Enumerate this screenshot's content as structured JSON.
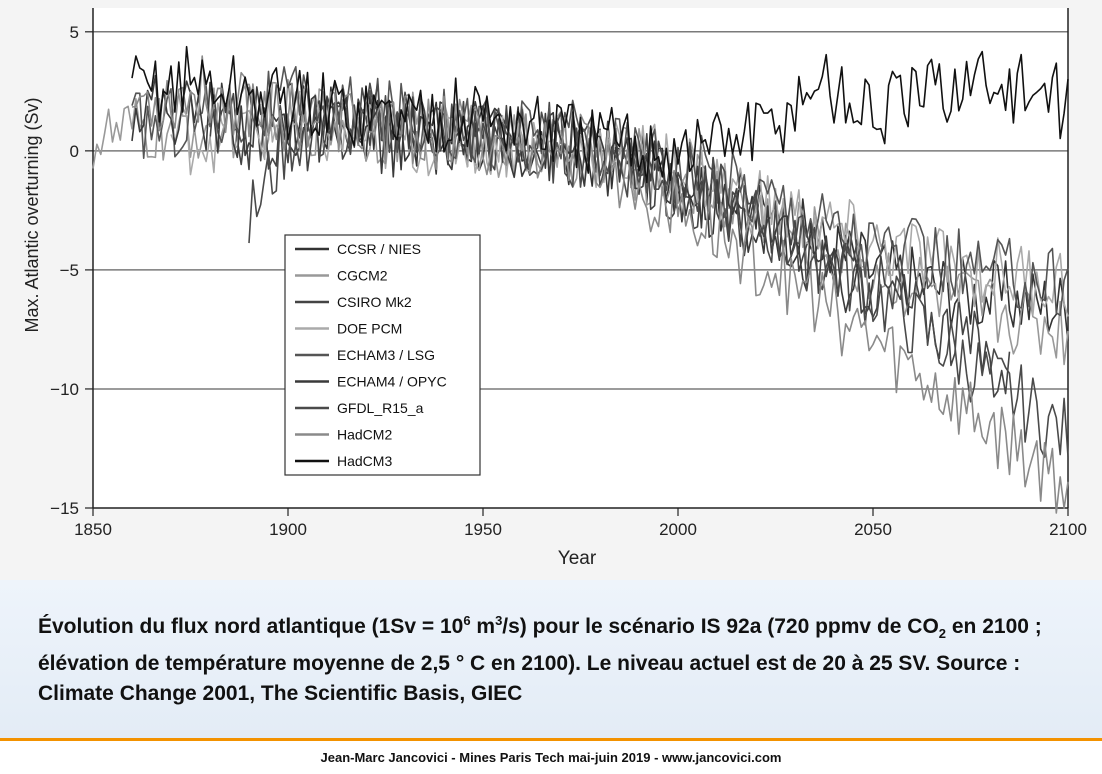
{
  "chart_data": {
    "type": "line",
    "xlabel": "Year",
    "ylabel": "Max. Atlantic overturning (Sv)",
    "xlim": [
      1850,
      2100
    ],
    "ylim": [
      -15,
      6
    ],
    "xticks": [
      "1850",
      "1900",
      "1950",
      "2000",
      "2050",
      "2100"
    ],
    "yticks": [
      "5",
      "0",
      "−5",
      "−10",
      "−15"
    ],
    "grid": "horizontal",
    "legend_position": "center-left",
    "series": [
      {
        "name": "CCSR / NIES",
        "color": "#333333",
        "x": [
          1900,
          1925,
          1950,
          1975,
          2000,
          2025,
          2050,
          2075,
          2100
        ],
        "values": [
          1.5,
          1.0,
          0.5,
          0.0,
          -1.0,
          -3.0,
          -5.0,
          -6.0,
          -6.5
        ]
      },
      {
        "name": "CGCM2",
        "color": "#999999",
        "x": [
          1850,
          1875,
          1900,
          1925,
          1950,
          1975,
          2000,
          2025,
          2050,
          2075,
          2100
        ],
        "values": [
          0.5,
          1.0,
          1.5,
          1.0,
          0.5,
          0.0,
          -1.0,
          -3.0,
          -5.0,
          -6.5,
          -7.5
        ]
      },
      {
        "name": "CSIRO Mk2",
        "color": "#444444",
        "x": [
          1880,
          1900,
          1925,
          1950,
          1975,
          2000,
          2025,
          2050,
          2075,
          2085
        ],
        "values": [
          1.0,
          0.5,
          1.5,
          0.5,
          0.5,
          -1.5,
          -3.5,
          -5.5,
          -8.0,
          -9.5
        ]
      },
      {
        "name": "DOE PCM",
        "color": "#aaaaaa",
        "x": [
          1870,
          1900,
          1925,
          1950,
          1975,
          2000,
          2025,
          2050,
          2075,
          2100
        ],
        "values": [
          0.5,
          1.0,
          0.5,
          0.5,
          0.0,
          -0.5,
          -2.5,
          -4.0,
          -5.0,
          -5.5
        ]
      },
      {
        "name": "ECHAM3 / LSG",
        "color": "#555555",
        "x": [
          1860,
          1880,
          1900,
          1925,
          1950,
          1975,
          2000,
          2025,
          2050,
          2075,
          2100
        ],
        "values": [
          1.0,
          1.5,
          2.0,
          1.5,
          1.0,
          0.5,
          -0.5,
          -2.0,
          -4.0,
          -5.0,
          -5.5
        ]
      },
      {
        "name": "ECHAM4 / OPYC",
        "color": "#3a3a3a",
        "x": [
          1860,
          1880,
          1900,
          1925,
          1950,
          1975,
          2000,
          2025,
          2050
        ],
        "values": [
          2.0,
          1.5,
          1.0,
          0.5,
          0.5,
          0.0,
          -1.5,
          -3.5,
          -6.0
        ]
      },
      {
        "name": "GFDL_R15_a",
        "color": "#4a4a4a",
        "x": [
          1890,
          1900,
          1925,
          1950,
          1975,
          2000,
          2025,
          2050,
          2075,
          2100
        ],
        "values": [
          -3.0,
          0.5,
          1.5,
          0.5,
          0.0,
          -1.0,
          -3.5,
          -6.0,
          -9.0,
          -12.0
        ]
      },
      {
        "name": "HadCM2",
        "color": "#8a8a8a",
        "x": [
          1860,
          1880,
          1900,
          1925,
          1950,
          1975,
          2000,
          2025,
          2050,
          2075,
          2100
        ],
        "values": [
          2.0,
          2.5,
          1.5,
          1.0,
          0.5,
          0.0,
          -2.5,
          -5.0,
          -8.0,
          -11.0,
          -14.0
        ]
      },
      {
        "name": "HadCM3",
        "color": "#111111",
        "x": [
          1860,
          1875,
          1900,
          1925,
          1950,
          1975,
          2000,
          2025,
          2035,
          2050,
          2075,
          2100
        ],
        "values": [
          2.5,
          3.0,
          2.0,
          1.5,
          1.5,
          0.5,
          0.0,
          1.0,
          3.0,
          1.5,
          3.0,
          2.0
        ]
      }
    ]
  },
  "caption": {
    "part1": "Évolution du flux nord atlantique (1Sv = 10",
    "sup1": "6",
    "part2": " m",
    "sup2": "3",
    "part3": "/s) pour le scénario IS 92a (720 ppmv de CO",
    "sub1": "2",
    "part4": " en 2100 ; élévation de température moyenne de 2,5 °  C en 2100). Le niveau actuel est de 20 à 25 SV. Source : Climate Change 2001, The Scientific Basis, GIEC"
  },
  "footer": {
    "text": "Jean-Marc Jancovici - Mines Paris Tech mai-juin 2019 - www.jancovici.com"
  },
  "colors": {
    "accent_line": "#f39200",
    "caption_background": "#e6eef7"
  }
}
